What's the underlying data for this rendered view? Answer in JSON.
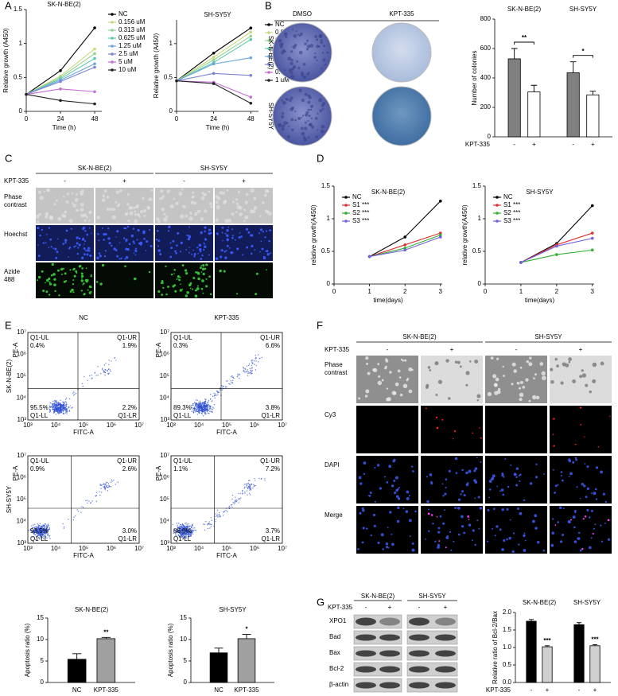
{
  "panel_labels": [
    "A",
    "B",
    "C",
    "D",
    "E",
    "F",
    "G"
  ],
  "chart_data": [
    {
      "type": "line",
      "title": "SK-N-BE(2)",
      "x": [
        0,
        24,
        48
      ],
      "xlim": [
        0,
        53
      ],
      "xticks": [
        0,
        24,
        48
      ],
      "ylim": [
        0,
        1.5
      ],
      "yticks": [
        0,
        0.5,
        1,
        1.5
      ],
      "xlabel": "Time (h)",
      "ylabel": "Relative growth (A450)",
      "legend": "right",
      "series": [
        {
          "name": "NC",
          "color": "#000000",
          "values": [
            0.25,
            0.6,
            1.23
          ]
        },
        {
          "name": "0.156 uM",
          "color": "#c9d97c",
          "values": [
            0.25,
            0.52,
            0.92
          ]
        },
        {
          "name": "0.313 uM",
          "color": "#93d48f",
          "values": [
            0.25,
            0.5,
            0.85
          ]
        },
        {
          "name": "0.625 uM",
          "color": "#5ec8b2",
          "values": [
            0.25,
            0.48,
            0.78
          ]
        },
        {
          "name": "1.25 uM",
          "color": "#6aa6dd",
          "values": [
            0.25,
            0.46,
            0.7
          ]
        },
        {
          "name": "2.5 uM",
          "color": "#7b83d8",
          "values": [
            0.25,
            0.44,
            0.65
          ]
        },
        {
          "name": "5 uM",
          "color": "#c36ed2",
          "values": [
            0.25,
            0.33,
            0.29
          ]
        },
        {
          "name": "10 uM",
          "color": "#222222",
          "values": [
            0.25,
            0.16,
            0.11
          ]
        }
      ]
    },
    {
      "type": "line",
      "title": "SH-SY5Y",
      "x": [
        0,
        24,
        48
      ],
      "xlim": [
        0,
        53
      ],
      "xticks": [
        0,
        24,
        48
      ],
      "ylim": [
        0,
        1.35
      ],
      "yticks": [
        0,
        0.5,
        1
      ],
      "xlabel": "Time (h)",
      "ylabel": "Relative growth (A450)",
      "legend": "right",
      "series": [
        {
          "name": "NC",
          "color": "#000000",
          "values": [
            0.45,
            0.86,
            1.23
          ]
        },
        {
          "name": "0.016 uM",
          "color": "#c9d97c",
          "values": [
            0.45,
            0.8,
            1.17
          ]
        },
        {
          "name": "0.031 uM",
          "color": "#93d48f",
          "values": [
            0.45,
            0.76,
            1.11
          ]
        },
        {
          "name": "0.063 uM",
          "color": "#5ec8b2",
          "values": [
            0.45,
            0.72,
            1.06
          ]
        },
        {
          "name": "0.125 uM",
          "color": "#6aa6dd",
          "values": [
            0.45,
            0.7,
            0.79
          ]
        },
        {
          "name": "0.25 uM",
          "color": "#7b83d8",
          "values": [
            0.45,
            0.56,
            0.53
          ]
        },
        {
          "name": "0.5 uM",
          "color": "#c36ed2",
          "values": [
            0.45,
            0.43,
            0.21
          ]
        },
        {
          "name": "1 uM",
          "color": "#222222",
          "values": [
            0.45,
            0.41,
            0.12
          ]
        }
      ]
    },
    {
      "type": "bar",
      "ylabel": "Number of colonies",
      "groups": [
        "SK-N-BE(2)",
        "SH-SY5Y"
      ],
      "category_axis_label": "KPT-335",
      "categories": [
        "-",
        "+",
        "-",
        "+"
      ],
      "values": [
        530,
        305,
        435,
        285
      ],
      "errors": [
        70,
        45,
        75,
        25
      ],
      "colors": [
        "#808080",
        "#ffffff",
        "#808080",
        "#ffffff"
      ],
      "group_annotations": [
        "**",
        "*"
      ],
      "ylim": [
        0,
        800
      ],
      "yticks": [
        0,
        200,
        400,
        600,
        800
      ]
    },
    {
      "type": "line",
      "title": "SK-N-BE(2)",
      "x": [
        1,
        2,
        3
      ],
      "xlim": [
        0,
        3.05
      ],
      "xticks": [
        0,
        1,
        2,
        3
      ],
      "ylim": [
        0,
        1.5
      ],
      "yticks": [
        0,
        0.5,
        1,
        1.5
      ],
      "xlabel": "time(days)",
      "ylabel": "relative growth(A450)",
      "legend": "upper left",
      "series": [
        {
          "name": "NC",
          "color": "#000000",
          "values": [
            0.42,
            0.72,
            1.27
          ]
        },
        {
          "name": "S1 ***",
          "color": "#e03030",
          "values": [
            0.42,
            0.6,
            0.78
          ]
        },
        {
          "name": "S2 ***",
          "color": "#30b030",
          "values": [
            0.42,
            0.55,
            0.75
          ]
        },
        {
          "name": "S3 ***",
          "color": "#7060e0",
          "values": [
            0.42,
            0.52,
            0.72
          ]
        }
      ]
    },
    {
      "type": "line",
      "title": "SH-SY5Y",
      "x": [
        1,
        2,
        3
      ],
      "xlim": [
        0,
        3.05
      ],
      "xticks": [
        0,
        1,
        2,
        3
      ],
      "ylim": [
        0,
        1.5
      ],
      "yticks": [
        0,
        0.5,
        1,
        1.5
      ],
      "xlabel": "time(days)",
      "ylabel": "relative growth(A450)",
      "legend": "upper left",
      "series": [
        {
          "name": "NC",
          "color": "#000000",
          "values": [
            0.33,
            0.62,
            1.2
          ]
        },
        {
          "name": "S1 ***",
          "color": "#e03030",
          "values": [
            0.33,
            0.6,
            0.78
          ]
        },
        {
          "name": "S2 ***",
          "color": "#30b030",
          "values": [
            0.33,
            0.45,
            0.52
          ]
        },
        {
          "name": "S3 ***",
          "color": "#7060e0",
          "values": [
            0.33,
            0.58,
            0.7
          ]
        }
      ]
    },
    {
      "type": "bar",
      "title": "SK-N-BE(2)",
      "ylabel": "Apoptosis ratio (%)",
      "categories": [
        "NC",
        "KPT-335"
      ],
      "values": [
        5.4,
        10.2
      ],
      "errors": [
        1.3,
        0.3
      ],
      "colors": [
        "#000000",
        "#a0a0a0"
      ],
      "bar_annotations": [
        null,
        "**"
      ],
      "ylim": [
        0,
        15
      ],
      "yticks": [
        0,
        5,
        10,
        15
      ]
    },
    {
      "type": "bar",
      "title": "SH-SY5Y",
      "ylabel": "Apoptosis ratio (%)",
      "categories": [
        "NC",
        "KPT-335"
      ],
      "values": [
        6.9,
        10.2
      ],
      "errors": [
        1.1,
        1.0
      ],
      "colors": [
        "#000000",
        "#a0a0a0"
      ],
      "bar_annotations": [
        null,
        "*"
      ],
      "ylim": [
        0,
        15
      ],
      "yticks": [
        0,
        5,
        10,
        15
      ]
    },
    {
      "type": "bar",
      "ylabel": "Relative ratio of Bcl-2/Bax",
      "groups": [
        "SK-N-BE(2)",
        "SH-SY5Y"
      ],
      "category_axis_label": "KPT-335",
      "categories": [
        "-",
        "+",
        "-",
        "+"
      ],
      "values": [
        1.75,
        1.02,
        1.65,
        1.05
      ],
      "errors": [
        0.05,
        0.03,
        0.06,
        0.03
      ],
      "colors": [
        "#000000",
        "#d0d0d0",
        "#000000",
        "#d0d0d0"
      ],
      "bar_annotations": [
        null,
        "***",
        null,
        "***"
      ],
      "ylim": [
        0,
        2
      ],
      "yticks": [
        {
          "value": 0,
          "label": "0.0"
        },
        {
          "value": 0.5,
          "label": "0.5"
        },
        {
          "value": 1,
          "label": "1.0"
        },
        {
          "value": 1.5,
          "label": "1.5"
        },
        {
          "value": 2,
          "label": "2.0"
        }
      ]
    }
  ],
  "colony_assay": {
    "columns": [
      "DMSO",
      "KPT-335"
    ],
    "rows": [
      "SK-N-BE(2)",
      "SH-SY5Y"
    ]
  },
  "imaging_c": {
    "groups": [
      "SK-N-BE(2)",
      "SH-SY5Y"
    ],
    "treatment_label": "KPT-335",
    "signs": [
      "-",
      "+",
      "-",
      "+"
    ],
    "rows": [
      [
        "Phase",
        "contrast"
      ],
      [
        "Hoechst"
      ],
      [
        "Azide",
        "488"
      ]
    ]
  },
  "flow_e": {
    "columns": [
      "NC",
      "KPT-335"
    ],
    "rows": [
      "SK-N-BE(2)",
      "SH-SY5Y"
    ],
    "xlabel": "FITC-A",
    "ylabel": "PE-A",
    "ticks": [
      "10³",
      "10⁴",
      "10⁵",
      "10⁶",
      "10⁷"
    ],
    "quadrant_names": [
      "Q1-UL",
      "Q1-UR",
      "Q1-LL",
      "Q1-LR"
    ],
    "plots": [
      {
        "percentages": [
          "0.4%",
          "1.9%",
          "95.5%",
          "2.2%"
        ]
      },
      {
        "percentages": [
          "0.3%",
          "6.6%",
          "89.3%",
          "3.8%"
        ]
      },
      {
        "percentages": [
          "0.9%",
          "2.6%",
          "93.5%",
          "3.0%"
        ]
      },
      {
        "percentages": [
          "1.1%",
          "7.2%",
          "88.0%",
          "3.7%"
        ]
      }
    ]
  },
  "imaging_f": {
    "groups": [
      "SK-N-BE(2)",
      "SH-SY5Y"
    ],
    "treatment_label": "KPT-335",
    "signs": [
      "-",
      "+",
      "-",
      "+"
    ],
    "rows": [
      [
        "Phase",
        "contrast"
      ],
      [
        "Cy3"
      ],
      [
        "DAPI"
      ],
      [
        "Merge"
      ]
    ]
  },
  "blot_g": {
    "groups": [
      "SK-N-BE(2)",
      "SH-SY5Y"
    ],
    "treatment_label": "KPT-335",
    "signs": [
      "-",
      "+",
      "-",
      "+"
    ],
    "proteins": [
      "XPO1",
      "Bad",
      "Bax",
      "Bcl-2",
      "β-actin"
    ]
  }
}
